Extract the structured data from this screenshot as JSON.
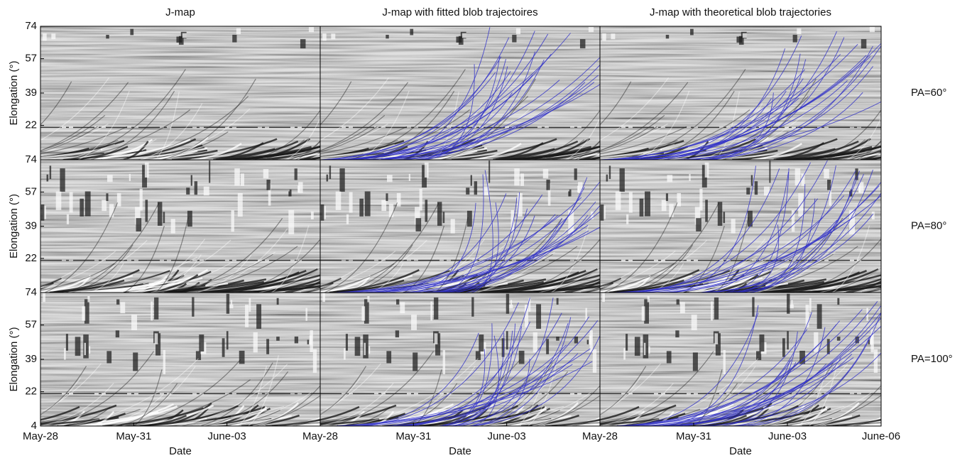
{
  "figure": {
    "column_titles": [
      "J-map",
      "J-map with fitted blob trajectoires",
      "J-map with theoretical blob trajectories"
    ],
    "row_labels": [
      "PA=60°",
      "PA=80°",
      "PA=100°"
    ],
    "y_label": "Elongation (°)",
    "x_label": "Date",
    "ylim": [
      4,
      74
    ],
    "yticks": [
      4,
      22,
      39,
      57,
      74
    ],
    "xticks": [
      "May-28",
      "May-31",
      "June-03",
      "June-06"
    ]
  }
}
